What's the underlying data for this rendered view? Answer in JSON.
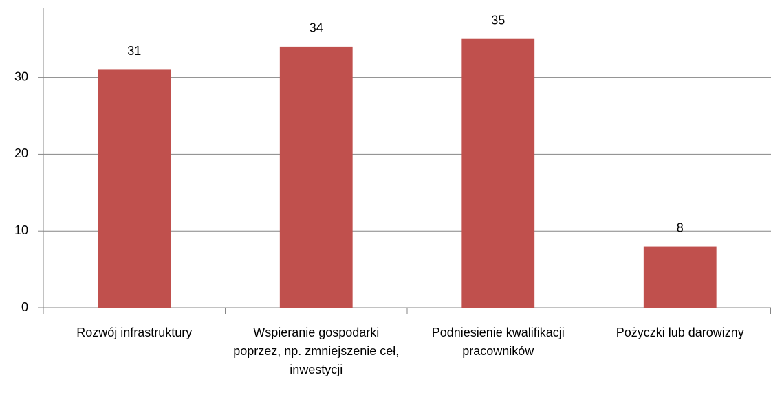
{
  "chart_data": {
    "type": "bar",
    "categories": [
      "Rozwój infrastruktury",
      "Wspieranie gospodarki poprzez, np. zmniejszenie ceł, inwestycji",
      "Podniesienie kwalifikacji pracowników",
      "Pożyczki lub darowizny"
    ],
    "values": [
      31,
      34,
      35,
      8
    ],
    "color": "#c0504d",
    "ylim": [
      0,
      39
    ],
    "yticks": [
      0,
      10,
      20,
      30
    ],
    "grid": true
  }
}
